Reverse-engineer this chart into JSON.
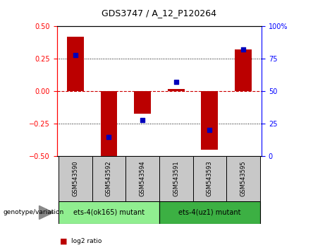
{
  "title": "GDS3747 / A_12_P120264",
  "categories": [
    "GSM543590",
    "GSM543592",
    "GSM543594",
    "GSM543591",
    "GSM543593",
    "GSM543595"
  ],
  "log2_ratio": [
    0.42,
    -0.5,
    -0.17,
    0.02,
    -0.45,
    0.32
  ],
  "percentile_rank": [
    78,
    15,
    28,
    57,
    20,
    82
  ],
  "group1_label": "ets-4(ok165) mutant",
  "group2_label": "ets-4(uz1) mutant",
  "ylim_left": [
    -0.5,
    0.5
  ],
  "ylim_right": [
    0,
    100
  ],
  "yticks_left": [
    -0.5,
    -0.25,
    0,
    0.25,
    0.5
  ],
  "yticks_right": [
    0,
    25,
    50,
    75,
    100
  ],
  "bar_color": "#bb0000",
  "dot_color": "#0000bb",
  "zero_line_color": "#cc0000",
  "group1_bg": "#90ee90",
  "group2_bg": "#3cb043",
  "tick_label_bg": "#c8c8c8",
  "legend_square_red": "#bb0000",
  "legend_square_blue": "#0000bb",
  "bar_width": 0.5,
  "dot_size": 25
}
